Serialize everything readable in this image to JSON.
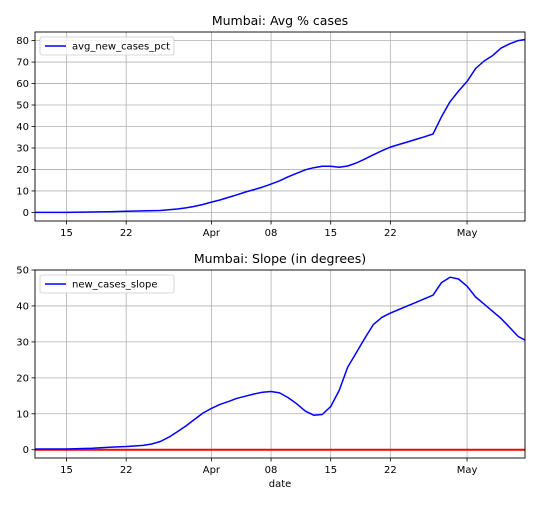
{
  "chart_data": [
    {
      "type": "line",
      "title": "Mumbai: Avg % cases",
      "xlabel": "",
      "ylabel": "",
      "x_tick_labels": [
        "15",
        "22",
        "Apr",
        "08",
        "15",
        "22",
        "May"
      ],
      "x_tick_days": [
        15,
        22,
        32,
        39,
        46,
        53,
        62
      ],
      "x_range_days": [
        11.3,
        68.8
      ],
      "y_ticks": [
        0,
        10,
        20,
        30,
        40,
        50,
        60,
        70,
        80
      ],
      "ylim": [
        -4,
        84
      ],
      "grid": true,
      "legend": {
        "placement": "top-left",
        "entries": [
          "avg_new_cases_pct"
        ]
      },
      "series": [
        {
          "name": "avg_new_cases_pct",
          "color": "#0000ff",
          "x_days": [
            11.3,
            15,
            20,
            22,
            24,
            26,
            27,
            28,
            29,
            30,
            31,
            32,
            33,
            34,
            35,
            36,
            37,
            38,
            39,
            40,
            41,
            42,
            43,
            44,
            45,
            46,
            47,
            48,
            49,
            50,
            51,
            52,
            53,
            54,
            55,
            56,
            57,
            58,
            59,
            60,
            61,
            62,
            63,
            64,
            65,
            66,
            67,
            68,
            68.8
          ],
          "values": [
            0,
            0,
            0.3,
            0.5,
            0.7,
            0.9,
            1.2,
            1.6,
            2.1,
            2.8,
            3.7,
            4.8,
            5.8,
            7,
            8.2,
            9.5,
            10.6,
            11.8,
            13.2,
            14.7,
            16.6,
            18.2,
            19.8,
            20.8,
            21.5,
            21.5,
            21,
            21.6,
            23,
            24.8,
            26.8,
            28.7,
            30.4,
            31.6,
            32.8,
            34,
            35.2,
            36.5,
            44.5,
            51.5,
            56.5,
            61,
            67,
            70.5,
            73,
            76.5,
            78.5,
            80,
            80.5
          ]
        }
      ]
    },
    {
      "type": "line",
      "title": "Mumbai: Slope (in degrees)",
      "xlabel": "date",
      "ylabel": "",
      "x_tick_labels": [
        "15",
        "22",
        "Apr",
        "08",
        "15",
        "22",
        "May"
      ],
      "x_tick_days": [
        15,
        22,
        32,
        39,
        46,
        53,
        62
      ],
      "x_range_days": [
        11.3,
        68.8
      ],
      "y_ticks": [
        0,
        10,
        20,
        30,
        40,
        50
      ],
      "ylim": [
        -2.3,
        50
      ],
      "grid": true,
      "legend": {
        "placement": "top-left",
        "entries": [
          "new_cases_slope"
        ]
      },
      "series": [
        {
          "name": "new_cases_slope",
          "color": "#0000ff",
          "x_days": [
            11.3,
            15,
            18,
            20,
            22,
            24,
            25,
            26,
            27,
            28,
            29,
            30,
            31,
            32,
            33,
            34,
            35,
            36,
            37,
            38,
            39,
            40,
            41,
            42,
            43,
            44,
            45,
            46,
            47,
            48,
            49,
            50,
            51,
            52,
            53,
            54,
            55,
            56,
            57,
            58,
            59,
            60,
            61,
            62,
            63,
            64,
            65,
            66,
            67,
            68,
            68.8
          ],
          "values": [
            0.2,
            0.2,
            0.4,
            0.7,
            0.9,
            1.2,
            1.6,
            2.3,
            3.5,
            5,
            6.6,
            8.4,
            10.2,
            11.5,
            12.6,
            13.4,
            14.3,
            14.9,
            15.5,
            16,
            16.2,
            15.8,
            14.5,
            12.8,
            10.8,
            9.6,
            9.8,
            12,
            16.5,
            23,
            27,
            31,
            34.8,
            36.8,
            38,
            39,
            40,
            41,
            42,
            43,
            46.5,
            48,
            47.5,
            45.5,
            42.5,
            40.5,
            38.5,
            36.5,
            34,
            31.5,
            30.5
          ]
        }
      ],
      "reference_line": {
        "y": 0,
        "color": "#ff0000"
      }
    }
  ]
}
